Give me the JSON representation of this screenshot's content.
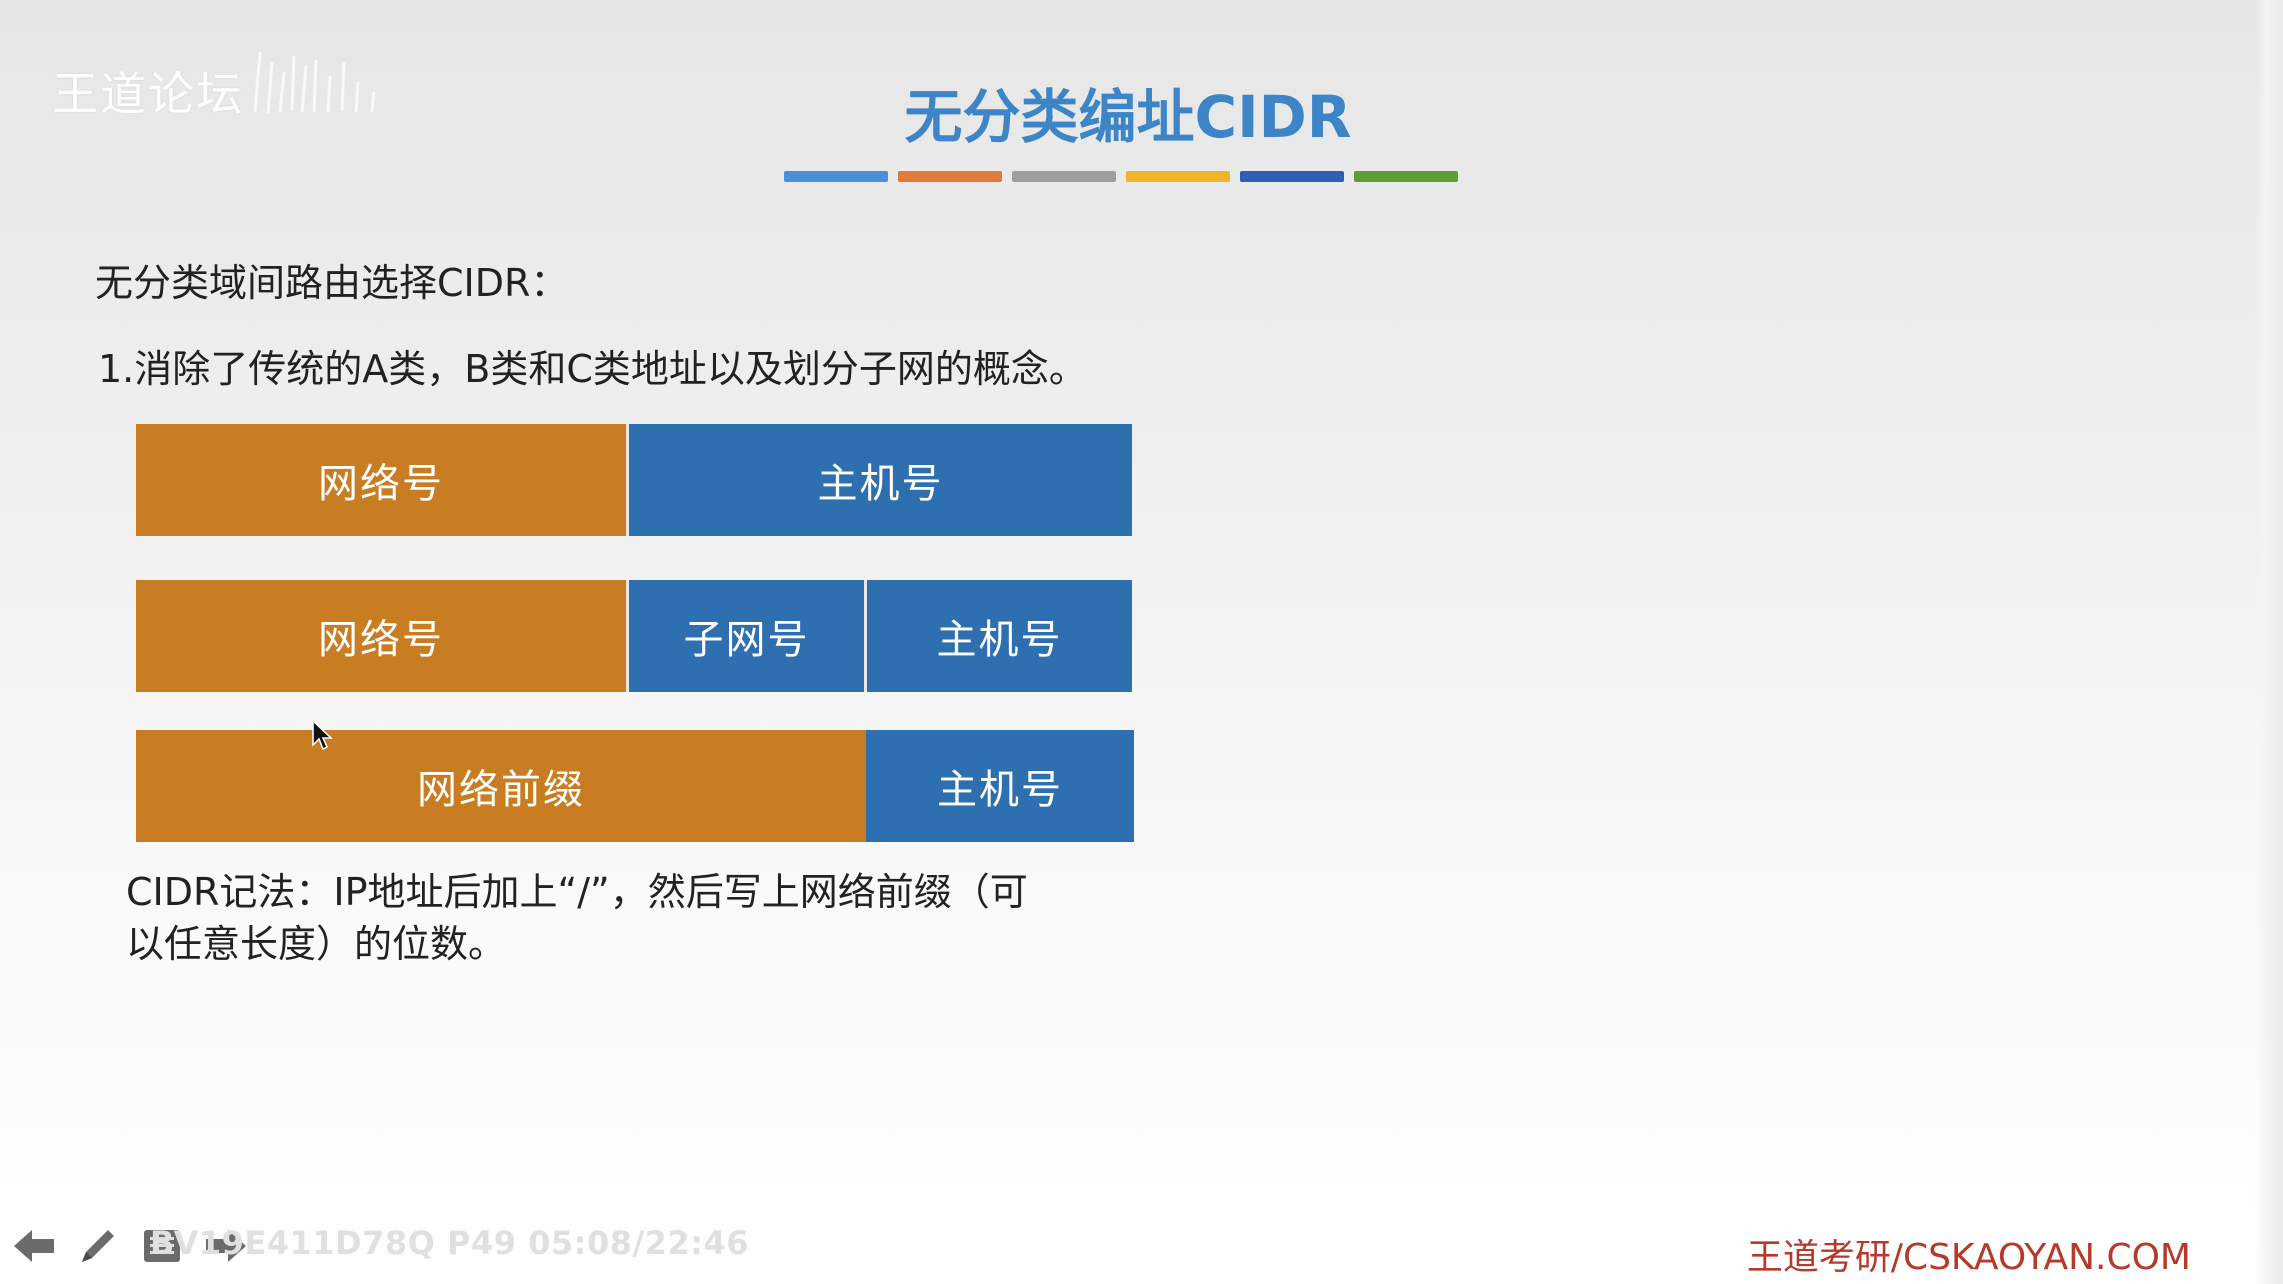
{
  "watermark": {
    "logo_text": "王道论坛"
  },
  "slide": {
    "title": "无分类编址CIDR",
    "title_bar_colors": [
      "#4a90d9",
      "#e07b39",
      "#9e9e9e",
      "#f0b429",
      "#2e5fb5",
      "#5e9e35"
    ],
    "heading": "无分类域间路由选择CIDR：",
    "point_1": "1.消除了传统的A类，B类和C类地址以及划分子网的概念。",
    "diagram": {
      "colors": {
        "network": "#c97d23",
        "host": "#2e6fb0"
      },
      "row_1": {
        "network": "网络号",
        "host": "主机号"
      },
      "row_2": {
        "network": "网络号",
        "subnet": "子网号",
        "host": "主机号"
      },
      "row_3": {
        "prefix": "网络前缀",
        "host": "主机号"
      }
    },
    "cidr_note_line_1": "CIDR记法：IP地址后加上“/”，然后写上网络前缀（可",
    "cidr_note_line_2": "以任意长度）的位数。"
  },
  "footer": {
    "brand": "王道考研/CSKAOYAN.COM",
    "video_info": "BV19E411D78Q P49 05:08/22:46"
  },
  "toolbar": {
    "icons": [
      "arrow-left-icon",
      "pen-icon",
      "menu-icon",
      "arrow-right-icon"
    ]
  }
}
